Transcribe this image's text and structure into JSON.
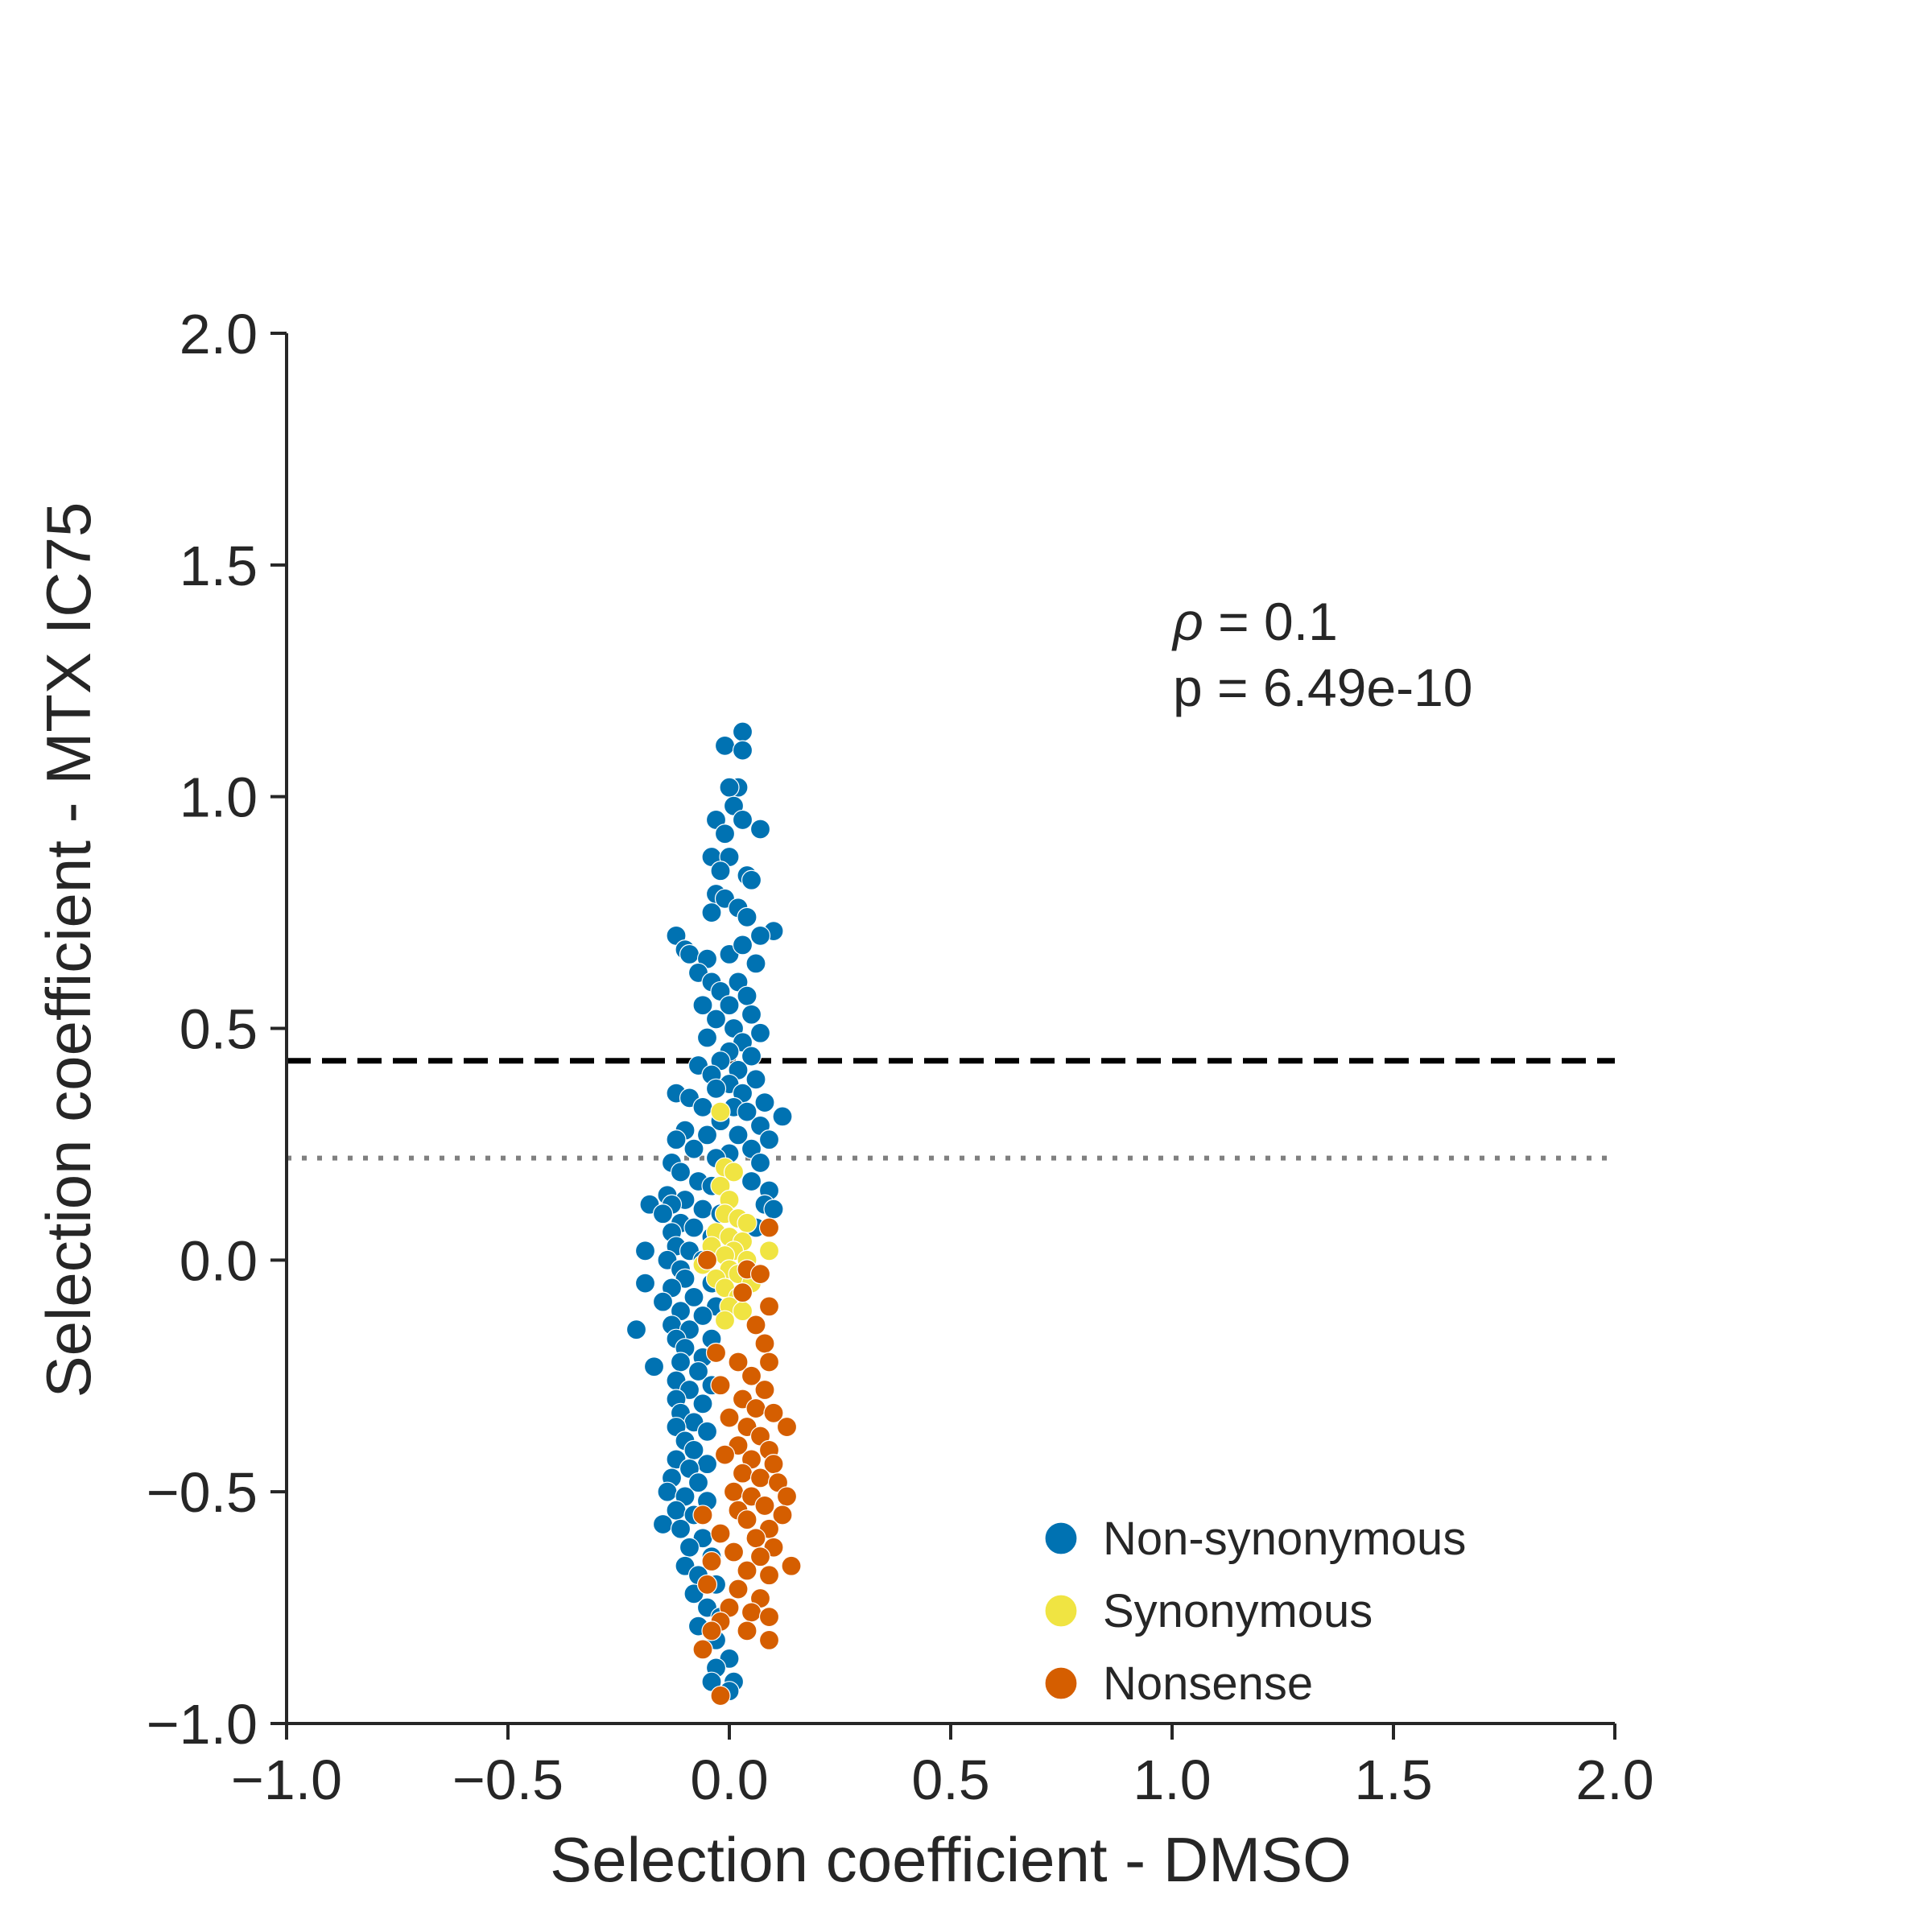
{
  "chart_data": {
    "type": "scatter",
    "xlabel": "Selection coefficient - DMSO",
    "ylabel": "Selection coefficient - MTX IC75",
    "xlim": [
      -1.0,
      2.0
    ],
    "ylim": [
      -1.0,
      2.0
    ],
    "x_ticks": [
      "−1.0",
      "−0.5",
      "0.0",
      "0.5",
      "1.0",
      "1.5",
      "2.0"
    ],
    "y_ticks": [
      "−1.0",
      "−0.5",
      "0.0",
      "0.5",
      "1.0",
      "1.5",
      "2.0"
    ],
    "grid": false,
    "legend_position": "lower-right",
    "annotations": {
      "rho_symbol": "ρ",
      "rho_text": " = 0.1",
      "p_text": "p = 6.49e-10"
    },
    "reference_lines": [
      {
        "y": 0.43,
        "style": "dashed",
        "color": "#000000"
      },
      {
        "y": 0.22,
        "style": "dotted",
        "color": "#808080"
      }
    ],
    "series": [
      {
        "name": "Non-synonymous",
        "color": "#0072b2",
        "points": [
          [
            0.03,
            1.14
          ],
          [
            -0.01,
            1.11
          ],
          [
            0.03,
            1.1
          ],
          [
            0.02,
            1.02
          ],
          [
            0.0,
            1.02
          ],
          [
            0.01,
            0.98
          ],
          [
            -0.03,
            0.95
          ],
          [
            0.03,
            0.95
          ],
          [
            -0.01,
            0.92
          ],
          [
            0.07,
            0.93
          ],
          [
            -0.04,
            0.87
          ],
          [
            0.0,
            0.87
          ],
          [
            -0.02,
            0.84
          ],
          [
            0.04,
            0.83
          ],
          [
            0.05,
            0.82
          ],
          [
            -0.03,
            0.79
          ],
          [
            -0.01,
            0.78
          ],
          [
            0.02,
            0.76
          ],
          [
            -0.04,
            0.75
          ],
          [
            0.04,
            0.74
          ],
          [
            0.1,
            0.71
          ],
          [
            0.07,
            0.7
          ],
          [
            -0.12,
            0.7
          ],
          [
            -0.1,
            0.67
          ],
          [
            -0.09,
            0.66
          ],
          [
            -0.05,
            0.65
          ],
          [
            0.0,
            0.66
          ],
          [
            0.03,
            0.68
          ],
          [
            0.06,
            0.64
          ],
          [
            -0.07,
            0.62
          ],
          [
            -0.04,
            0.6
          ],
          [
            -0.02,
            0.58
          ],
          [
            0.02,
            0.6
          ],
          [
            0.04,
            0.57
          ],
          [
            -0.06,
            0.55
          ],
          [
            0.0,
            0.55
          ],
          [
            0.05,
            0.53
          ],
          [
            -0.03,
            0.52
          ],
          [
            0.01,
            0.5
          ],
          [
            0.07,
            0.49
          ],
          [
            -0.05,
            0.48
          ],
          [
            0.03,
            0.47
          ],
          [
            0.0,
            0.45
          ],
          [
            -0.02,
            0.43
          ],
          [
            0.05,
            0.44
          ],
          [
            -0.07,
            0.42
          ],
          [
            0.02,
            0.41
          ],
          [
            -0.04,
            0.4
          ],
          [
            0.06,
            0.39
          ],
          [
            0.0,
            0.38
          ],
          [
            -0.03,
            0.37
          ],
          [
            0.03,
            0.36
          ],
          [
            -0.12,
            0.36
          ],
          [
            -0.09,
            0.35
          ],
          [
            0.08,
            0.34
          ],
          [
            -0.06,
            0.33
          ],
          [
            0.01,
            0.33
          ],
          [
            0.04,
            0.32
          ],
          [
            0.12,
            0.31
          ],
          [
            -0.02,
            0.3
          ],
          [
            0.07,
            0.29
          ],
          [
            -0.1,
            0.28
          ],
          [
            -0.05,
            0.27
          ],
          [
            0.02,
            0.27
          ],
          [
            0.09,
            0.26
          ],
          [
            -0.12,
            0.26
          ],
          [
            -0.08,
            0.24
          ],
          [
            0.05,
            0.24
          ],
          [
            0.0,
            0.23
          ],
          [
            -0.03,
            0.22
          ],
          [
            0.07,
            0.21
          ],
          [
            -0.13,
            0.21
          ],
          [
            -0.11,
            0.19
          ],
          [
            -0.07,
            0.17
          ],
          [
            0.05,
            0.17
          ],
          [
            -0.04,
            0.16
          ],
          [
            0.09,
            0.15
          ],
          [
            -0.14,
            0.14
          ],
          [
            -0.1,
            0.13
          ],
          [
            -0.18,
            0.12
          ],
          [
            -0.13,
            0.12
          ],
          [
            0.08,
            0.12
          ],
          [
            -0.06,
            0.11
          ],
          [
            0.1,
            0.11
          ],
          [
            -0.15,
            0.1
          ],
          [
            -0.02,
            0.1
          ],
          [
            -0.11,
            0.08
          ],
          [
            -0.08,
            0.07
          ],
          [
            0.06,
            0.07
          ],
          [
            -0.13,
            0.06
          ],
          [
            -0.04,
            0.05
          ],
          [
            -0.12,
            0.03
          ],
          [
            -0.19,
            0.02
          ],
          [
            -0.09,
            0.02
          ],
          [
            -0.14,
            0.0
          ],
          [
            -0.06,
            0.0
          ],
          [
            -0.11,
            -0.02
          ],
          [
            -0.19,
            -0.05
          ],
          [
            -0.1,
            -0.04
          ],
          [
            -0.04,
            -0.05
          ],
          [
            -0.13,
            -0.06
          ],
          [
            -0.08,
            -0.08
          ],
          [
            -0.15,
            -0.09
          ],
          [
            -0.03,
            -0.1
          ],
          [
            -0.11,
            -0.11
          ],
          [
            -0.06,
            -0.12
          ],
          [
            -0.21,
            -0.15
          ],
          [
            -0.13,
            -0.14
          ],
          [
            -0.09,
            -0.15
          ],
          [
            -0.12,
            -0.17
          ],
          [
            -0.04,
            -0.17
          ],
          [
            -0.1,
            -0.19
          ],
          [
            -0.06,
            -0.21
          ],
          [
            -0.17,
            -0.23
          ],
          [
            -0.11,
            -0.22
          ],
          [
            -0.07,
            -0.24
          ],
          [
            -0.12,
            -0.26
          ],
          [
            -0.04,
            -0.27
          ],
          [
            -0.09,
            -0.28
          ],
          [
            -0.12,
            -0.3
          ],
          [
            -0.06,
            -0.31
          ],
          [
            -0.11,
            -0.33
          ],
          [
            -0.08,
            -0.35
          ],
          [
            -0.12,
            -0.36
          ],
          [
            -0.05,
            -0.37
          ],
          [
            -0.1,
            -0.39
          ],
          [
            -0.08,
            -0.41
          ],
          [
            -0.12,
            -0.43
          ],
          [
            -0.05,
            -0.44
          ],
          [
            -0.09,
            -0.45
          ],
          [
            -0.13,
            -0.47
          ],
          [
            -0.07,
            -0.48
          ],
          [
            -0.14,
            -0.5
          ],
          [
            -0.1,
            -0.51
          ],
          [
            -0.05,
            -0.52
          ],
          [
            -0.12,
            -0.54
          ],
          [
            -0.08,
            -0.55
          ],
          [
            -0.15,
            -0.57
          ],
          [
            -0.11,
            -0.58
          ],
          [
            -0.06,
            -0.6
          ],
          [
            -0.09,
            -0.62
          ],
          [
            -0.04,
            -0.64
          ],
          [
            -0.1,
            -0.66
          ],
          [
            -0.07,
            -0.68
          ],
          [
            -0.03,
            -0.7
          ],
          [
            -0.08,
            -0.72
          ],
          [
            -0.05,
            -0.75
          ],
          [
            -0.02,
            -0.77
          ],
          [
            -0.07,
            -0.79
          ],
          [
            -0.03,
            -0.82
          ],
          [
            -0.06,
            -0.84
          ],
          [
            0.0,
            -0.86
          ],
          [
            -0.03,
            -0.88
          ],
          [
            0.01,
            -0.91
          ],
          [
            -0.04,
            -0.91
          ],
          [
            0.0,
            -0.93
          ]
        ]
      },
      {
        "name": "Synonymous",
        "color": "#f0e442",
        "points": [
          [
            -0.02,
            0.32
          ],
          [
            -0.01,
            0.2
          ],
          [
            0.01,
            0.19
          ],
          [
            -0.02,
            0.16
          ],
          [
            0.0,
            0.13
          ],
          [
            -0.01,
            0.1
          ],
          [
            0.02,
            0.09
          ],
          [
            0.04,
            0.08
          ],
          [
            -0.03,
            0.06
          ],
          [
            0.0,
            0.05
          ],
          [
            0.03,
            0.04
          ],
          [
            -0.04,
            0.03
          ],
          [
            0.01,
            0.02
          ],
          [
            0.09,
            0.02
          ],
          [
            -0.01,
            0.01
          ],
          [
            0.04,
            0.0
          ],
          [
            -0.06,
            -0.01
          ],
          [
            0.0,
            -0.02
          ],
          [
            0.02,
            -0.03
          ],
          [
            -0.03,
            -0.04
          ],
          [
            0.05,
            -0.05
          ],
          [
            -0.01,
            -0.06
          ],
          [
            0.02,
            -0.08
          ],
          [
            0.0,
            -0.1
          ],
          [
            0.03,
            -0.11
          ],
          [
            -0.01,
            -0.13
          ]
        ]
      },
      {
        "name": "Nonsense",
        "color": "#d55e00",
        "points": [
          [
            0.09,
            0.07
          ],
          [
            -0.05,
            0.0
          ],
          [
            0.04,
            -0.02
          ],
          [
            0.07,
            -0.03
          ],
          [
            0.03,
            -0.07
          ],
          [
            0.09,
            -0.1
          ],
          [
            0.06,
            -0.14
          ],
          [
            0.08,
            -0.18
          ],
          [
            -0.03,
            -0.2
          ],
          [
            0.02,
            -0.22
          ],
          [
            0.09,
            -0.22
          ],
          [
            0.05,
            -0.25
          ],
          [
            -0.02,
            -0.27
          ],
          [
            0.08,
            -0.28
          ],
          [
            0.03,
            -0.3
          ],
          [
            0.06,
            -0.32
          ],
          [
            0.1,
            -0.33
          ],
          [
            0.0,
            -0.34
          ],
          [
            0.04,
            -0.36
          ],
          [
            0.13,
            -0.36
          ],
          [
            0.07,
            -0.38
          ],
          [
            0.02,
            -0.4
          ],
          [
            0.09,
            -0.41
          ],
          [
            -0.01,
            -0.42
          ],
          [
            0.05,
            -0.43
          ],
          [
            0.1,
            -0.44
          ],
          [
            0.03,
            -0.46
          ],
          [
            0.07,
            -0.47
          ],
          [
            0.11,
            -0.48
          ],
          [
            0.01,
            -0.5
          ],
          [
            0.05,
            -0.51
          ],
          [
            0.13,
            -0.51
          ],
          [
            0.08,
            -0.53
          ],
          [
            0.02,
            -0.54
          ],
          [
            0.12,
            -0.55
          ],
          [
            -0.06,
            -0.55
          ],
          [
            0.04,
            -0.56
          ],
          [
            0.09,
            -0.58
          ],
          [
            -0.02,
            -0.59
          ],
          [
            0.06,
            -0.6
          ],
          [
            0.1,
            -0.62
          ],
          [
            0.01,
            -0.63
          ],
          [
            0.07,
            -0.64
          ],
          [
            -0.04,
            -0.65
          ],
          [
            0.14,
            -0.66
          ],
          [
            0.04,
            -0.67
          ],
          [
            0.09,
            -0.68
          ],
          [
            -0.05,
            -0.7
          ],
          [
            0.02,
            -0.71
          ],
          [
            0.07,
            -0.73
          ],
          [
            0.0,
            -0.75
          ],
          [
            0.05,
            -0.76
          ],
          [
            0.09,
            -0.77
          ],
          [
            -0.02,
            -0.78
          ],
          [
            0.04,
            -0.8
          ],
          [
            -0.04,
            -0.8
          ],
          [
            0.09,
            -0.82
          ],
          [
            -0.06,
            -0.84
          ],
          [
            -0.02,
            -0.94
          ]
        ]
      }
    ]
  }
}
